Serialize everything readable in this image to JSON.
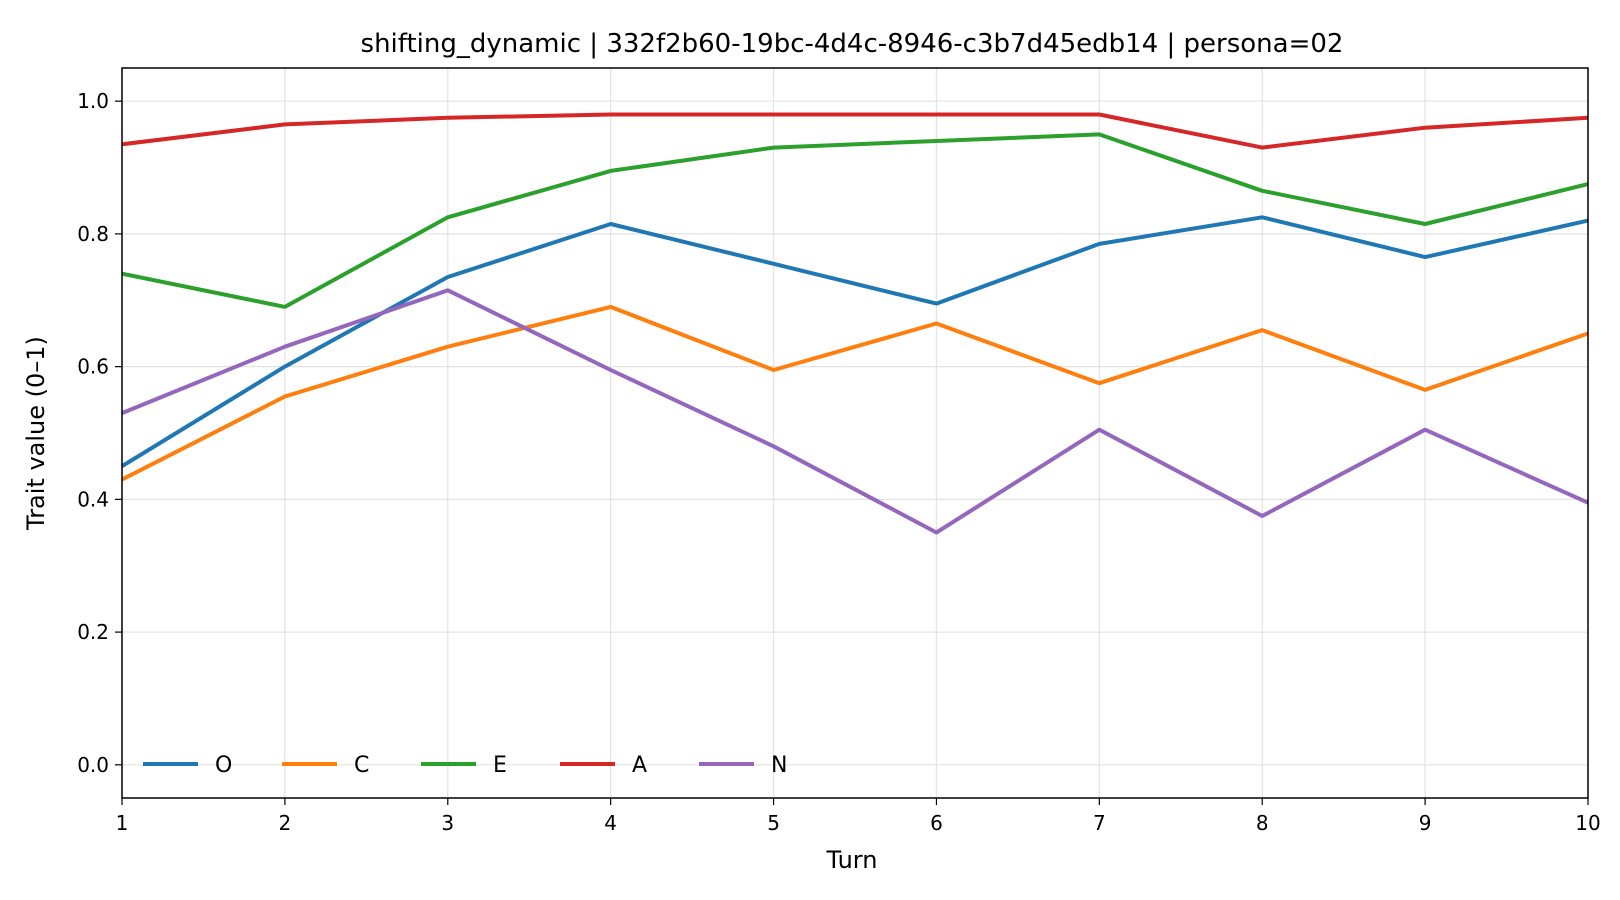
{
  "chart_data": {
    "type": "line",
    "title": "shifting_dynamic | 332f2b60-19bc-4d4c-8946-c3b7d45edb14 | persona=02",
    "xlabel": "Turn",
    "ylabel": "Trait value (0–1)",
    "x": [
      1,
      2,
      3,
      4,
      5,
      6,
      7,
      8,
      9,
      10
    ],
    "xlim": [
      1,
      10
    ],
    "ylim": [
      -0.05,
      1.05
    ],
    "xticks": [
      1,
      2,
      3,
      4,
      5,
      6,
      7,
      8,
      9,
      10
    ],
    "yticks": [
      0.0,
      0.2,
      0.4,
      0.6,
      0.8,
      1.0
    ],
    "ytick_labels": [
      "0.0",
      "0.2",
      "0.4",
      "0.6",
      "0.8",
      "1.0"
    ],
    "grid": true,
    "legend_position": "lower-left",
    "series": [
      {
        "name": "O",
        "color": "#1f77b4",
        "values": [
          0.45,
          0.6,
          0.735,
          0.815,
          0.755,
          0.695,
          0.785,
          0.825,
          0.765,
          0.82
        ]
      },
      {
        "name": "C",
        "color": "#ff7f0e",
        "values": [
          0.43,
          0.555,
          0.63,
          0.69,
          0.595,
          0.665,
          0.575,
          0.655,
          0.565,
          0.65
        ]
      },
      {
        "name": "E",
        "color": "#2ca02c",
        "values": [
          0.74,
          0.69,
          0.825,
          0.895,
          0.93,
          0.94,
          0.95,
          0.865,
          0.815,
          0.875
        ]
      },
      {
        "name": "A",
        "color": "#d62728",
        "values": [
          0.935,
          0.965,
          0.975,
          0.98,
          0.98,
          0.98,
          0.98,
          0.93,
          0.96,
          0.975
        ]
      },
      {
        "name": "N",
        "color": "#9467bd",
        "values": [
          0.53,
          0.63,
          0.715,
          0.595,
          0.48,
          0.35,
          0.505,
          0.375,
          0.505,
          0.395
        ]
      }
    ]
  }
}
